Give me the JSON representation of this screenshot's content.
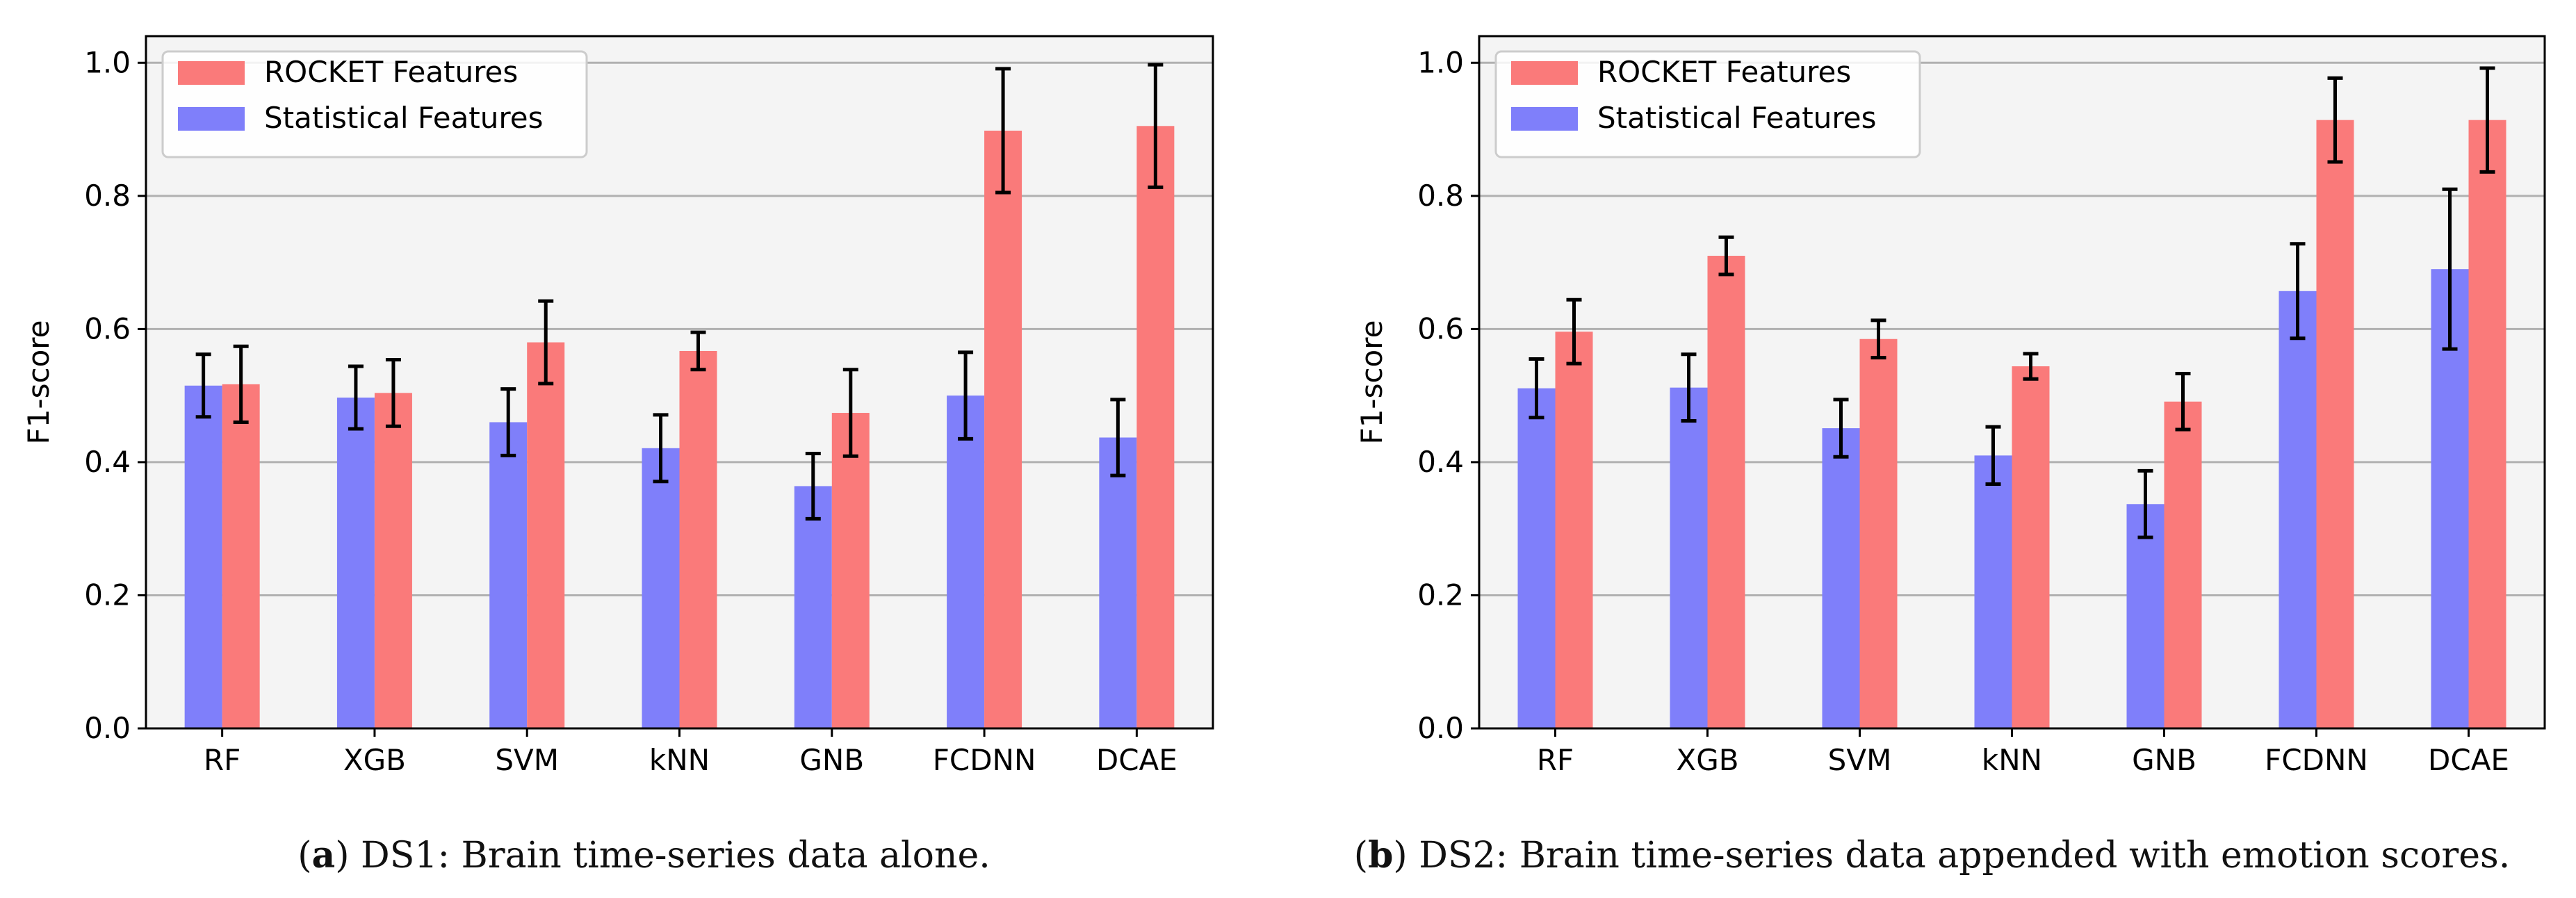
{
  "chart_data": [
    {
      "type": "bar",
      "panel_label": "a",
      "caption": "DS1: Brain time-series data alone.",
      "title": "",
      "xlabel": "",
      "ylabel": "F1-score",
      "ylim": [
        0,
        1.04
      ],
      "yticks": [
        "0.0",
        "0.2",
        "0.4",
        "0.6",
        "0.8",
        "1.0"
      ],
      "grid": "horizontal",
      "legend_position": "top-left",
      "categories": [
        "RF",
        "XGB",
        "SVM",
        "kNN",
        "GNB",
        "FCDNN",
        "DCAE"
      ],
      "series": [
        {
          "name": "Statistical Features",
          "color": "#7f7ffa",
          "values": [
            0.515,
            0.497,
            0.46,
            0.421,
            0.364,
            0.5,
            0.437
          ],
          "errors": [
            0.047,
            0.047,
            0.05,
            0.05,
            0.049,
            0.065,
            0.057
          ]
        },
        {
          "name": "ROCKET Features",
          "color": "#fa7a7a",
          "values": [
            0.517,
            0.504,
            0.58,
            0.567,
            0.474,
            0.898,
            0.905
          ],
          "errors": [
            0.057,
            0.05,
            0.062,
            0.028,
            0.065,
            0.093,
            0.092
          ]
        }
      ],
      "legend": [
        "ROCKET Features",
        "Statistical Features"
      ]
    },
    {
      "type": "bar",
      "panel_label": "b",
      "caption": "DS2: Brain time-series data appended with emotion scores.",
      "title": "",
      "xlabel": "",
      "ylabel": "F1-score",
      "ylim": [
        0,
        1.04
      ],
      "yticks": [
        "0.0",
        "0.2",
        "0.4",
        "0.6",
        "0.8",
        "1.0"
      ],
      "grid": "horizontal",
      "legend_position": "top-left",
      "categories": [
        "RF",
        "XGB",
        "SVM",
        "kNN",
        "GNB",
        "FCDNN",
        "DCAE"
      ],
      "series": [
        {
          "name": "Statistical Features",
          "color": "#7f7ffa",
          "values": [
            0.511,
            0.512,
            0.451,
            0.41,
            0.337,
            0.657,
            0.69
          ],
          "errors": [
            0.044,
            0.05,
            0.043,
            0.043,
            0.05,
            0.071,
            0.12
          ]
        },
        {
          "name": "ROCKET Features",
          "color": "#fa7a7a",
          "values": [
            0.596,
            0.71,
            0.585,
            0.544,
            0.491,
            0.914,
            0.914
          ],
          "errors": [
            0.048,
            0.028,
            0.028,
            0.019,
            0.042,
            0.063,
            0.078
          ]
        }
      ],
      "legend": [
        "ROCKET Features",
        "Statistical Features"
      ]
    }
  ]
}
